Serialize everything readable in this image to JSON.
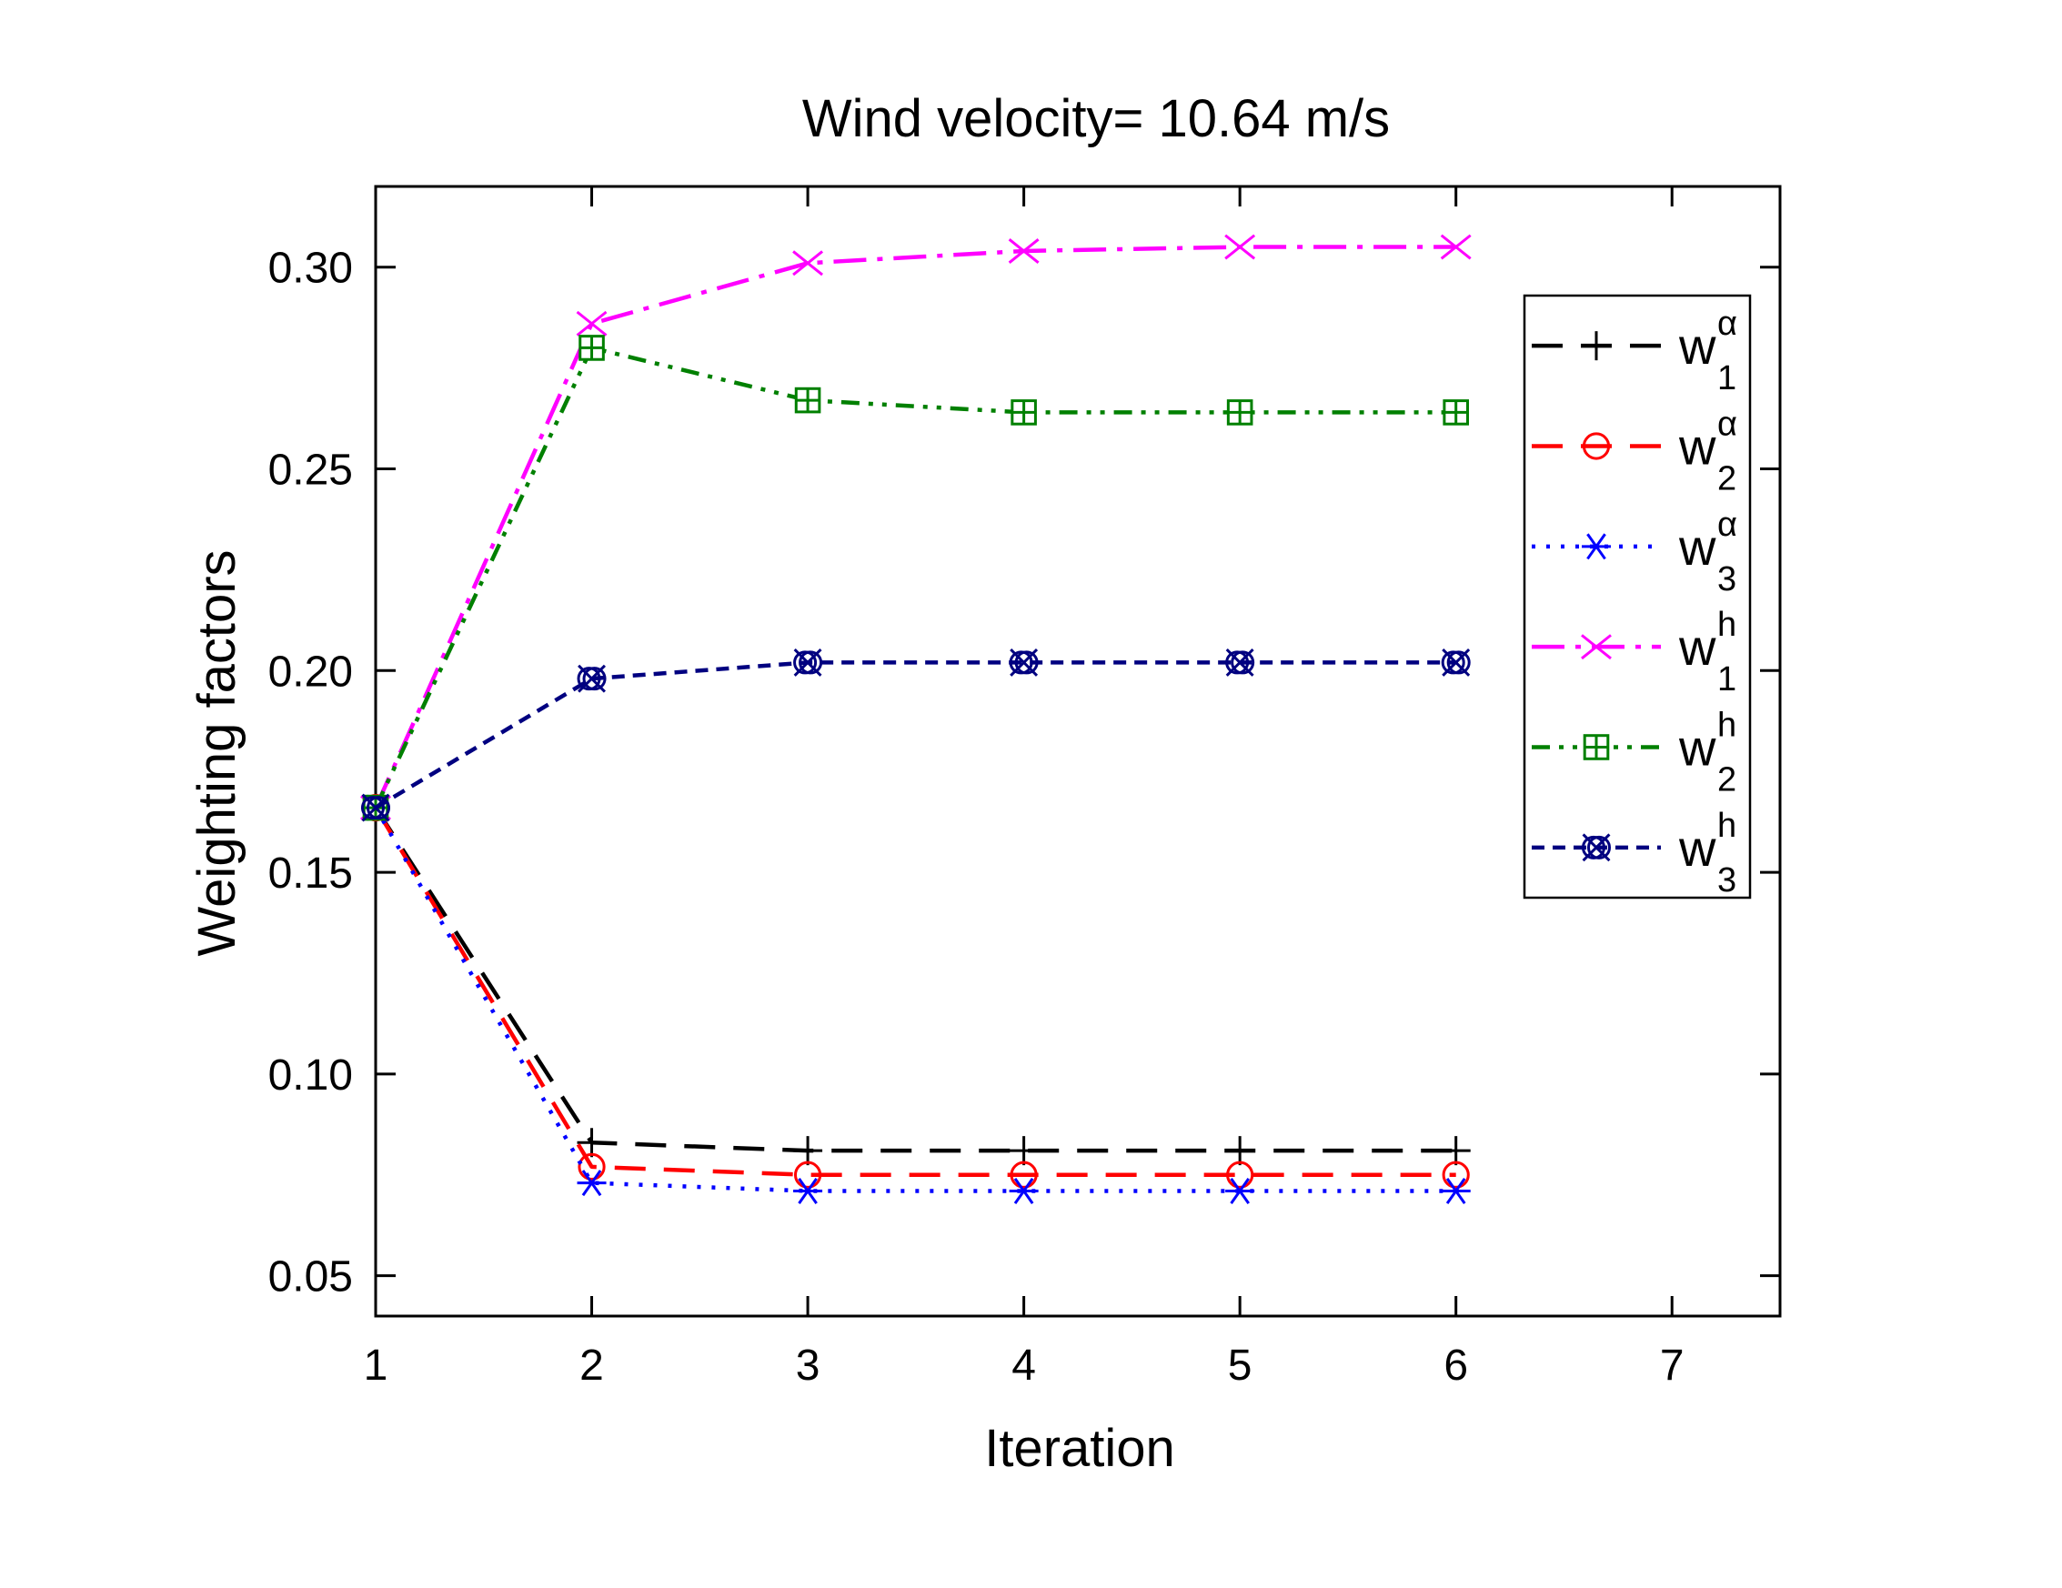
{
  "chart_data": {
    "type": "line",
    "title": "Wind velocity= 10.64 m/s",
    "xlabel": "Iteration",
    "ylabel": "Weighting factors",
    "xlim": [
      1,
      7.5
    ],
    "ylim": [
      0.04,
      0.32
    ],
    "xticks": [
      1,
      2,
      3,
      4,
      5,
      6,
      7
    ],
    "xtick_labels": [
      "1",
      "2",
      "3",
      "4",
      "5",
      "6",
      "7"
    ],
    "yticks": [
      0.05,
      0.1,
      0.15,
      0.2,
      0.25,
      0.3
    ],
    "ytick_labels": [
      "0.05",
      "0.10",
      "0.15",
      "0.20",
      "0.25",
      "0.30"
    ],
    "grid": false,
    "legend_position": "right",
    "x": [
      1,
      2,
      3,
      4,
      5,
      6
    ],
    "series": [
      {
        "name": "w1α",
        "base": "w",
        "sub": "1",
        "sup": "α",
        "color": "#000000",
        "dash": "34,20",
        "marker": "plus",
        "values": [
          0.166,
          0.083,
          0.081,
          0.081,
          0.081,
          0.081
        ]
      },
      {
        "name": "w2α",
        "base": "w",
        "sub": "2",
        "sup": "α",
        "color": "#ff0000",
        "dash": "34,20",
        "marker": "circle",
        "values": [
          0.166,
          0.077,
          0.075,
          0.075,
          0.075,
          0.075
        ]
      },
      {
        "name": "w3α",
        "base": "w",
        "sub": "3",
        "sup": "α",
        "color": "#0000ff",
        "dash": "4,12",
        "marker": "asterisk",
        "values": [
          0.166,
          0.073,
          0.071,
          0.071,
          0.071,
          0.071
        ]
      },
      {
        "name": "w1h",
        "base": "w",
        "sub": "1",
        "sup": "h",
        "color": "#ff00ff",
        "dash": "36,12,6,12",
        "marker": "x",
        "values": [
          0.166,
          0.286,
          0.301,
          0.304,
          0.305,
          0.305
        ]
      },
      {
        "name": "w2h",
        "base": "w",
        "sub": "2",
        "sup": "h",
        "color": "#008000",
        "dash": "20,10,5,10,5,10",
        "marker": "squareplus",
        "values": [
          0.166,
          0.28,
          0.267,
          0.264,
          0.264,
          0.264
        ]
      },
      {
        "name": "w3h",
        "base": "w",
        "sub": "3",
        "sup": "h",
        "color": "#000080",
        "dash": "14,9",
        "marker": "xcircle",
        "values": [
          0.166,
          0.198,
          0.202,
          0.202,
          0.202,
          0.202
        ]
      }
    ]
  }
}
